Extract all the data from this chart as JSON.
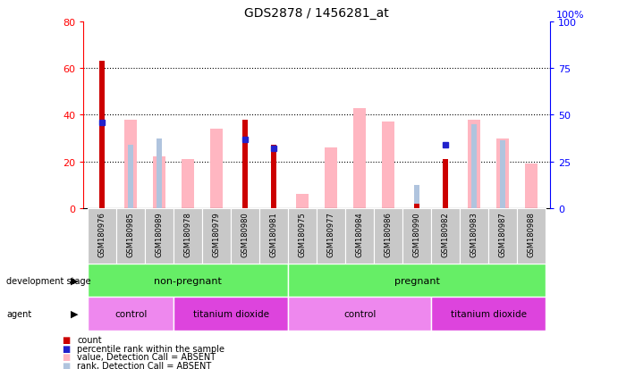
{
  "title": "GDS2878 / 1456281_at",
  "samples": [
    "GSM180976",
    "GSM180985",
    "GSM180989",
    "GSM180978",
    "GSM180979",
    "GSM180980",
    "GSM180981",
    "GSM180975",
    "GSM180977",
    "GSM180984",
    "GSM180986",
    "GSM180990",
    "GSM180982",
    "GSM180983",
    "GSM180987",
    "GSM180988"
  ],
  "count_values": [
    63,
    0,
    0,
    0,
    0,
    38,
    27,
    0,
    0,
    0,
    0,
    2,
    21,
    0,
    0,
    0
  ],
  "percentile_values": [
    46,
    null,
    null,
    null,
    null,
    37,
    32,
    null,
    null,
    null,
    null,
    null,
    34,
    null,
    null,
    null
  ],
  "absent_value_bars": [
    null,
    38,
    22,
    21,
    34,
    null,
    null,
    6,
    26,
    43,
    37,
    null,
    null,
    38,
    30,
    19
  ],
  "absent_rank_bars": [
    null,
    27,
    30,
    null,
    null,
    null,
    16,
    null,
    null,
    null,
    null,
    10,
    null,
    36,
    29,
    null
  ],
  "left_ylim": [
    0,
    80
  ],
  "right_ylim": [
    0,
    100
  ],
  "left_yticks": [
    0,
    20,
    40,
    60,
    80
  ],
  "right_yticks": [
    0,
    25,
    50,
    75,
    100
  ],
  "dev_groups": [
    {
      "label": "non-pregnant",
      "start": 0,
      "end": 7
    },
    {
      "label": "pregnant",
      "start": 7,
      "end": 16
    }
  ],
  "agent_groups": [
    {
      "label": "control",
      "start": 0,
      "end": 3
    },
    {
      "label": "titanium dioxide",
      "start": 3,
      "end": 7
    },
    {
      "label": "control",
      "start": 7,
      "end": 12
    },
    {
      "label": "titanium dioxide",
      "start": 12,
      "end": 16
    }
  ],
  "count_color": "#CC0000",
  "percentile_color": "#2222CC",
  "absent_value_color": "#FFB6C1",
  "absent_rank_color": "#B0C4DE",
  "dev_color": "#66EE66",
  "agent_color1": "#EE88EE",
  "agent_color2": "#DD44DD",
  "sample_bg_color": "#C8C8C8",
  "grid_yticks": [
    20,
    40,
    60
  ]
}
